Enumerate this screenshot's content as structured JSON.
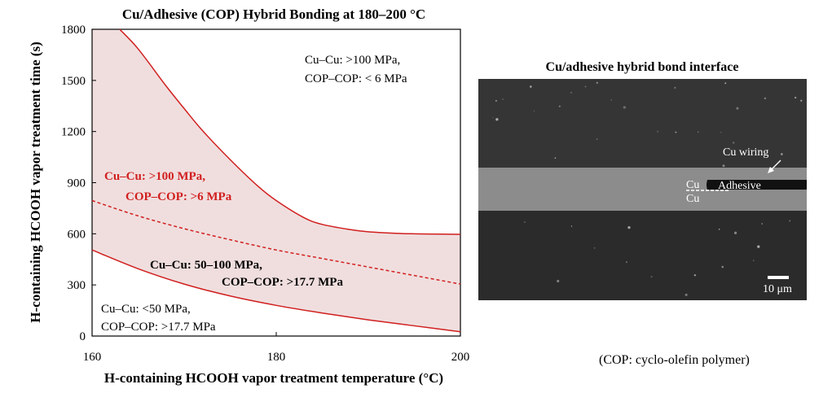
{
  "chart_data": {
    "type": "area",
    "title": "Cu/Adhesive (COP) Hybrid Bonding at 180–200 °C",
    "xlabel": "H-containing HCOOH vapor treatment temperature (°C)",
    "ylabel": "H-containing HCOOH vapor treatment time (s)",
    "xlim": [
      160,
      200
    ],
    "ylim": [
      0,
      1800
    ],
    "xticks": [
      "160",
      "180",
      "200"
    ],
    "yticks": [
      "0",
      "300",
      "600",
      "900",
      "1200",
      "1500",
      "1800"
    ],
    "fill_color": "#f0dede",
    "line_color": "#d11f1f",
    "series": [
      {
        "style": "solid",
        "x": [
          163,
          165,
          168,
          170,
          172,
          175,
          178,
          180,
          183,
          185,
          188,
          190,
          193,
          195,
          198,
          200
        ],
        "y": [
          1800,
          1685,
          1470,
          1335,
          1205,
          1035,
          880,
          795,
          695,
          655,
          625,
          612,
          603,
          600,
          598,
          597
        ]
      },
      {
        "style": "dashed",
        "x": [
          160,
          165,
          170,
          175,
          180,
          185,
          190,
          195,
          200
        ],
        "y": [
          795,
          705,
          630,
          565,
          505,
          455,
          405,
          355,
          305
        ]
      },
      {
        "style": "solid",
        "x": [
          160,
          165,
          170,
          175,
          180,
          185,
          190,
          195,
          200
        ],
        "y": [
          505,
          395,
          305,
          235,
          180,
          135,
          95,
          60,
          25
        ]
      }
    ],
    "annotations": {
      "top_right": [
        "Cu–Cu: >100 MPa,",
        "COP–COP: < 6 MPa"
      ],
      "red_region": [
        "Cu–Cu: >100 MPa,",
        "COP–COP: >6 MPa"
      ],
      "mid_region": [
        "Cu–Cu: 50–100 MPa,",
        "COP–COP: >17.7 MPa"
      ],
      "bottom_left": [
        "Cu–Cu: <50 MPa,",
        "COP–COP: >17.7 MPa"
      ]
    }
  },
  "micrograph": {
    "title": "Cu/adhesive hybrid bond interface",
    "labels": {
      "cu_wiring": "Cu wiring",
      "cu_top": "Cu",
      "cu_bottom": "Cu",
      "adhesive": "Adhesive",
      "scale_bar": "10 μm"
    }
  },
  "footnote": "(COP: cyclo-olefin polymer)"
}
